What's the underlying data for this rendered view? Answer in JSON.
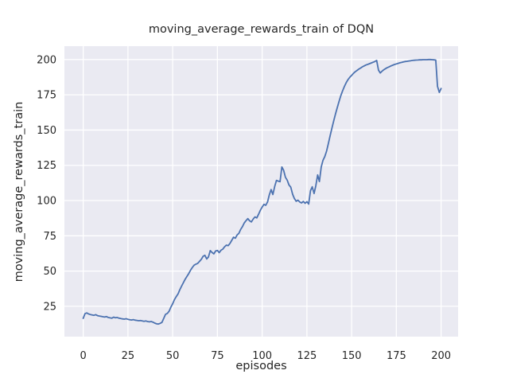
{
  "figure": {
    "title": "moving_average_rewards_train of DQN",
    "xlabel": "episodes",
    "ylabel": "moving_average_rewards_train"
  },
  "chart_data": {
    "type": "line",
    "title": "moving_average_rewards_train of DQN",
    "xlabel": "episodes",
    "ylabel": "moving_average_rewards_train",
    "x_ticks": [
      0,
      25,
      50,
      75,
      100,
      125,
      150,
      175,
      200
    ],
    "y_ticks": [
      25,
      50,
      75,
      100,
      125,
      150,
      175,
      200
    ],
    "xlim": [
      -10.5,
      209.5
    ],
    "ylim": [
      3.5,
      209.5
    ],
    "grid": true,
    "legend_position": "none",
    "colors": {
      "figure_bg": "#ffffff",
      "axes_bg": "#eaeaf2",
      "grid": "#ffffff",
      "line": "#4c72b0",
      "text": "#262626"
    },
    "series": [
      {
        "name": "moving_average_rewards_train",
        "points": [
          [
            0,
            16.5
          ],
          [
            1,
            19.8
          ],
          [
            2,
            20.3
          ],
          [
            3,
            19.6
          ],
          [
            4,
            19.2
          ],
          [
            5,
            18.9
          ],
          [
            6,
            18.6
          ],
          [
            7,
            19.1
          ],
          [
            8,
            18.4
          ],
          [
            9,
            18.1
          ],
          [
            10,
            17.9
          ],
          [
            11,
            17.6
          ],
          [
            12,
            17.4
          ],
          [
            13,
            17.7
          ],
          [
            14,
            17.1
          ],
          [
            15,
            16.8
          ],
          [
            16,
            16.6
          ],
          [
            17,
            17.3
          ],
          [
            18,
            16.9
          ],
          [
            19,
            17.1
          ],
          [
            20,
            16.6
          ],
          [
            21,
            16.3
          ],
          [
            22,
            16.1
          ],
          [
            23,
            15.9
          ],
          [
            24,
            16.2
          ],
          [
            25,
            15.8
          ],
          [
            26,
            15.5
          ],
          [
            27,
            15.3
          ],
          [
            28,
            15.6
          ],
          [
            29,
            15.2
          ],
          [
            30,
            15.0
          ],
          [
            31,
            14.8
          ],
          [
            32,
            14.9
          ],
          [
            33,
            14.6
          ],
          [
            34,
            14.4
          ],
          [
            35,
            14.6
          ],
          [
            36,
            14.2
          ],
          [
            37,
            14.0
          ],
          [
            38,
            14.2
          ],
          [
            39,
            13.8
          ],
          [
            40,
            13.1
          ],
          [
            41,
            12.6
          ],
          [
            42,
            12.4
          ],
          [
            43,
            12.9
          ],
          [
            44,
            13.6
          ],
          [
            45,
            16.5
          ],
          [
            46,
            19.3
          ],
          [
            47,
            20.0
          ],
          [
            48,
            21.5
          ],
          [
            49,
            24.5
          ],
          [
            50,
            26.8
          ],
          [
            51,
            29.8
          ],
          [
            52,
            31.9
          ],
          [
            53,
            33.8
          ],
          [
            54,
            36.8
          ],
          [
            55,
            39.4
          ],
          [
            56,
            41.8
          ],
          [
            57,
            44.3
          ],
          [
            58,
            46.2
          ],
          [
            59,
            48.3
          ],
          [
            60,
            50.6
          ],
          [
            61,
            52.6
          ],
          [
            62,
            54.2
          ],
          [
            63,
            54.9
          ],
          [
            64,
            55.5
          ],
          [
            65,
            56.9
          ],
          [
            66,
            58.3
          ],
          [
            67,
            60.5
          ],
          [
            68,
            61.2
          ],
          [
            69,
            58.6
          ],
          [
            70,
            60.0
          ],
          [
            71,
            64.5
          ],
          [
            72,
            63.2
          ],
          [
            73,
            62.2
          ],
          [
            74,
            64.2
          ],
          [
            75,
            64.6
          ],
          [
            76,
            63.1
          ],
          [
            77,
            64.8
          ],
          [
            78,
            65.5
          ],
          [
            79,
            67.2
          ],
          [
            80,
            68.4
          ],
          [
            81,
            68.0
          ],
          [
            82,
            69.6
          ],
          [
            83,
            71.8
          ],
          [
            84,
            74.0
          ],
          [
            85,
            73.3
          ],
          [
            86,
            75.6
          ],
          [
            87,
            76.8
          ],
          [
            88,
            79.5
          ],
          [
            89,
            81.6
          ],
          [
            90,
            84.1
          ],
          [
            91,
            85.8
          ],
          [
            92,
            87.2
          ],
          [
            93,
            85.6
          ],
          [
            94,
            84.9
          ],
          [
            95,
            86.9
          ],
          [
            96,
            88.4
          ],
          [
            97,
            87.7
          ],
          [
            98,
            90.3
          ],
          [
            99,
            93.2
          ],
          [
            100,
            95.3
          ],
          [
            101,
            97.3
          ],
          [
            102,
            96.6
          ],
          [
            103,
            99.0
          ],
          [
            104,
            104.0
          ],
          [
            105,
            107.8
          ],
          [
            106,
            104.3
          ],
          [
            107,
            110.0
          ],
          [
            108,
            114.3
          ],
          [
            109,
            113.8
          ],
          [
            110,
            113.4
          ],
          [
            111,
            123.8
          ],
          [
            112,
            121.5
          ],
          [
            113,
            116.5
          ],
          [
            114,
            114.5
          ],
          [
            115,
            111.0
          ],
          [
            116,
            109.5
          ],
          [
            117,
            104.5
          ],
          [
            118,
            101.5
          ],
          [
            119,
            99.5
          ],
          [
            120,
            100.3
          ],
          [
            121,
            99.0
          ],
          [
            122,
            98.3
          ],
          [
            123,
            99.4
          ],
          [
            124,
            98.1
          ],
          [
            125,
            99.2
          ],
          [
            126,
            97.5
          ],
          [
            127,
            107.0
          ],
          [
            128,
            109.8
          ],
          [
            129,
            105.0
          ],
          [
            130,
            110.5
          ],
          [
            131,
            118.2
          ],
          [
            132,
            113.5
          ],
          [
            133,
            123.8
          ],
          [
            134,
            128.5
          ],
          [
            135,
            131.2
          ],
          [
            136,
            135.0
          ],
          [
            137,
            140.5
          ],
          [
            138,
            146.0
          ],
          [
            139,
            151.5
          ],
          [
            140,
            156.5
          ],
          [
            141,
            161.5
          ],
          [
            142,
            166.0
          ],
          [
            143,
            170.5
          ],
          [
            144,
            174.5
          ],
          [
            145,
            178.0
          ],
          [
            146,
            181.0
          ],
          [
            147,
            183.7
          ],
          [
            148,
            185.8
          ],
          [
            149,
            187.5
          ],
          [
            150,
            188.8
          ],
          [
            151,
            190.2
          ],
          [
            152,
            191.3
          ],
          [
            153,
            192.3
          ],
          [
            154,
            193.2
          ],
          [
            155,
            194.0
          ],
          [
            156,
            194.8
          ],
          [
            157,
            195.5
          ],
          [
            158,
            196.1
          ],
          [
            159,
            196.6
          ],
          [
            160,
            197.1
          ],
          [
            161,
            197.6
          ],
          [
            162,
            198.1
          ],
          [
            163,
            198.6
          ],
          [
            164,
            199.4
          ],
          [
            165,
            192.5
          ],
          [
            166,
            190.5
          ],
          [
            167,
            191.8
          ],
          [
            168,
            192.8
          ],
          [
            169,
            193.6
          ],
          [
            170,
            194.3
          ],
          [
            171,
            194.9
          ],
          [
            172,
            195.5
          ],
          [
            173,
            196.0
          ],
          [
            174,
            196.5
          ],
          [
            175,
            196.9
          ],
          [
            176,
            197.3
          ],
          [
            177,
            197.7
          ],
          [
            178,
            198.0
          ],
          [
            179,
            198.3
          ],
          [
            180,
            198.6
          ],
          [
            181,
            198.8
          ],
          [
            182,
            199.0
          ],
          [
            183,
            199.2
          ],
          [
            184,
            199.4
          ],
          [
            185,
            199.5
          ],
          [
            186,
            199.6
          ],
          [
            187,
            199.7
          ],
          [
            188,
            199.8
          ],
          [
            189,
            199.8
          ],
          [
            190,
            199.9
          ],
          [
            191,
            199.9
          ],
          [
            192,
            199.9
          ],
          [
            193,
            200.0
          ],
          [
            194,
            200.0
          ],
          [
            195,
            199.9
          ],
          [
            196,
            199.8
          ],
          [
            197,
            199.6
          ],
          [
            198,
            181.0
          ],
          [
            199,
            176.7
          ],
          [
            200,
            179.5
          ]
        ]
      }
    ]
  }
}
